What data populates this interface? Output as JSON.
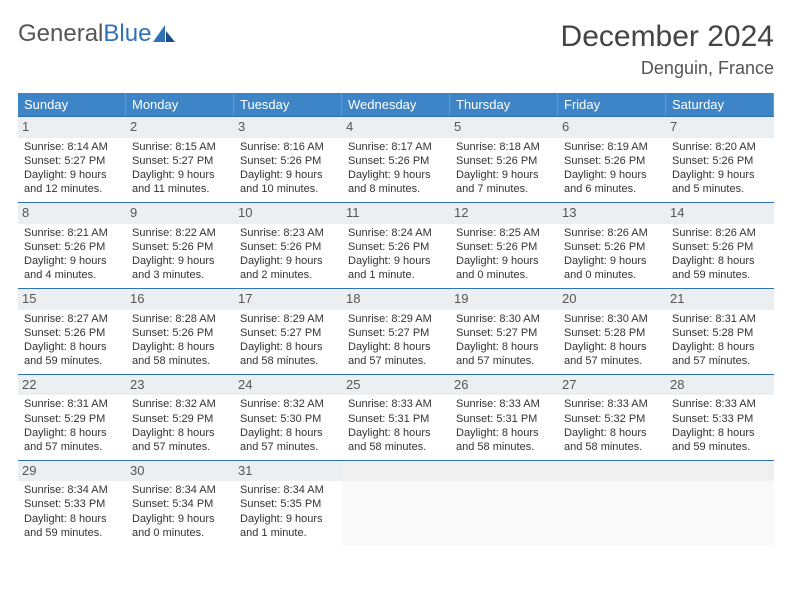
{
  "logo": {
    "left": "General",
    "right": "Blue"
  },
  "title": "December 2024",
  "location": "Denguin, France",
  "dow_bg": "#3d85c6",
  "border_color": "#2f72b8",
  "daynum_bg": "#eceff1",
  "dows": [
    "Sunday",
    "Monday",
    "Tuesday",
    "Wednesday",
    "Thursday",
    "Friday",
    "Saturday"
  ],
  "days": [
    {
      "n": "1",
      "sr": "8:14 AM",
      "ss": "5:27 PM",
      "dh": "9",
      "dm": "12"
    },
    {
      "n": "2",
      "sr": "8:15 AM",
      "ss": "5:27 PM",
      "dh": "9",
      "dm": "11"
    },
    {
      "n": "3",
      "sr": "8:16 AM",
      "ss": "5:26 PM",
      "dh": "9",
      "dm": "10"
    },
    {
      "n": "4",
      "sr": "8:17 AM",
      "ss": "5:26 PM",
      "dh": "9",
      "dm": "8"
    },
    {
      "n": "5",
      "sr": "8:18 AM",
      "ss": "5:26 PM",
      "dh": "9",
      "dm": "7"
    },
    {
      "n": "6",
      "sr": "8:19 AM",
      "ss": "5:26 PM",
      "dh": "9",
      "dm": "6"
    },
    {
      "n": "7",
      "sr": "8:20 AM",
      "ss": "5:26 PM",
      "dh": "9",
      "dm": "5"
    },
    {
      "n": "8",
      "sr": "8:21 AM",
      "ss": "5:26 PM",
      "dh": "9",
      "dm": "4"
    },
    {
      "n": "9",
      "sr": "8:22 AM",
      "ss": "5:26 PM",
      "dh": "9",
      "dm": "3"
    },
    {
      "n": "10",
      "sr": "8:23 AM",
      "ss": "5:26 PM",
      "dh": "9",
      "dm": "2"
    },
    {
      "n": "11",
      "sr": "8:24 AM",
      "ss": "5:26 PM",
      "dh": "9",
      "dm": "1"
    },
    {
      "n": "12",
      "sr": "8:25 AM",
      "ss": "5:26 PM",
      "dh": "9",
      "dm": "0"
    },
    {
      "n": "13",
      "sr": "8:26 AM",
      "ss": "5:26 PM",
      "dh": "9",
      "dm": "0"
    },
    {
      "n": "14",
      "sr": "8:26 AM",
      "ss": "5:26 PM",
      "dh": "8",
      "dm": "59"
    },
    {
      "n": "15",
      "sr": "8:27 AM",
      "ss": "5:26 PM",
      "dh": "8",
      "dm": "59"
    },
    {
      "n": "16",
      "sr": "8:28 AM",
      "ss": "5:26 PM",
      "dh": "8",
      "dm": "58"
    },
    {
      "n": "17",
      "sr": "8:29 AM",
      "ss": "5:27 PM",
      "dh": "8",
      "dm": "58"
    },
    {
      "n": "18",
      "sr": "8:29 AM",
      "ss": "5:27 PM",
      "dh": "8",
      "dm": "57"
    },
    {
      "n": "19",
      "sr": "8:30 AM",
      "ss": "5:27 PM",
      "dh": "8",
      "dm": "57"
    },
    {
      "n": "20",
      "sr": "8:30 AM",
      "ss": "5:28 PM",
      "dh": "8",
      "dm": "57"
    },
    {
      "n": "21",
      "sr": "8:31 AM",
      "ss": "5:28 PM",
      "dh": "8",
      "dm": "57"
    },
    {
      "n": "22",
      "sr": "8:31 AM",
      "ss": "5:29 PM",
      "dh": "8",
      "dm": "57"
    },
    {
      "n": "23",
      "sr": "8:32 AM",
      "ss": "5:29 PM",
      "dh": "8",
      "dm": "57"
    },
    {
      "n": "24",
      "sr": "8:32 AM",
      "ss": "5:30 PM",
      "dh": "8",
      "dm": "57"
    },
    {
      "n": "25",
      "sr": "8:33 AM",
      "ss": "5:31 PM",
      "dh": "8",
      "dm": "58"
    },
    {
      "n": "26",
      "sr": "8:33 AM",
      "ss": "5:31 PM",
      "dh": "8",
      "dm": "58"
    },
    {
      "n": "27",
      "sr": "8:33 AM",
      "ss": "5:32 PM",
      "dh": "8",
      "dm": "58"
    },
    {
      "n": "28",
      "sr": "8:33 AM",
      "ss": "5:33 PM",
      "dh": "8",
      "dm": "59"
    },
    {
      "n": "29",
      "sr": "8:34 AM",
      "ss": "5:33 PM",
      "dh": "8",
      "dm": "59"
    },
    {
      "n": "30",
      "sr": "8:34 AM",
      "ss": "5:34 PM",
      "dh": "9",
      "dm": "0"
    },
    {
      "n": "31",
      "sr": "8:34 AM",
      "ss": "5:35 PM",
      "dh": "9",
      "dm": "1"
    }
  ],
  "labels": {
    "sunrise": "Sunrise:",
    "sunset": "Sunset:",
    "daylight": "Daylight:",
    "hours": "hours",
    "and": "and",
    "minutes": "minutes.",
    "minute": "minute."
  }
}
